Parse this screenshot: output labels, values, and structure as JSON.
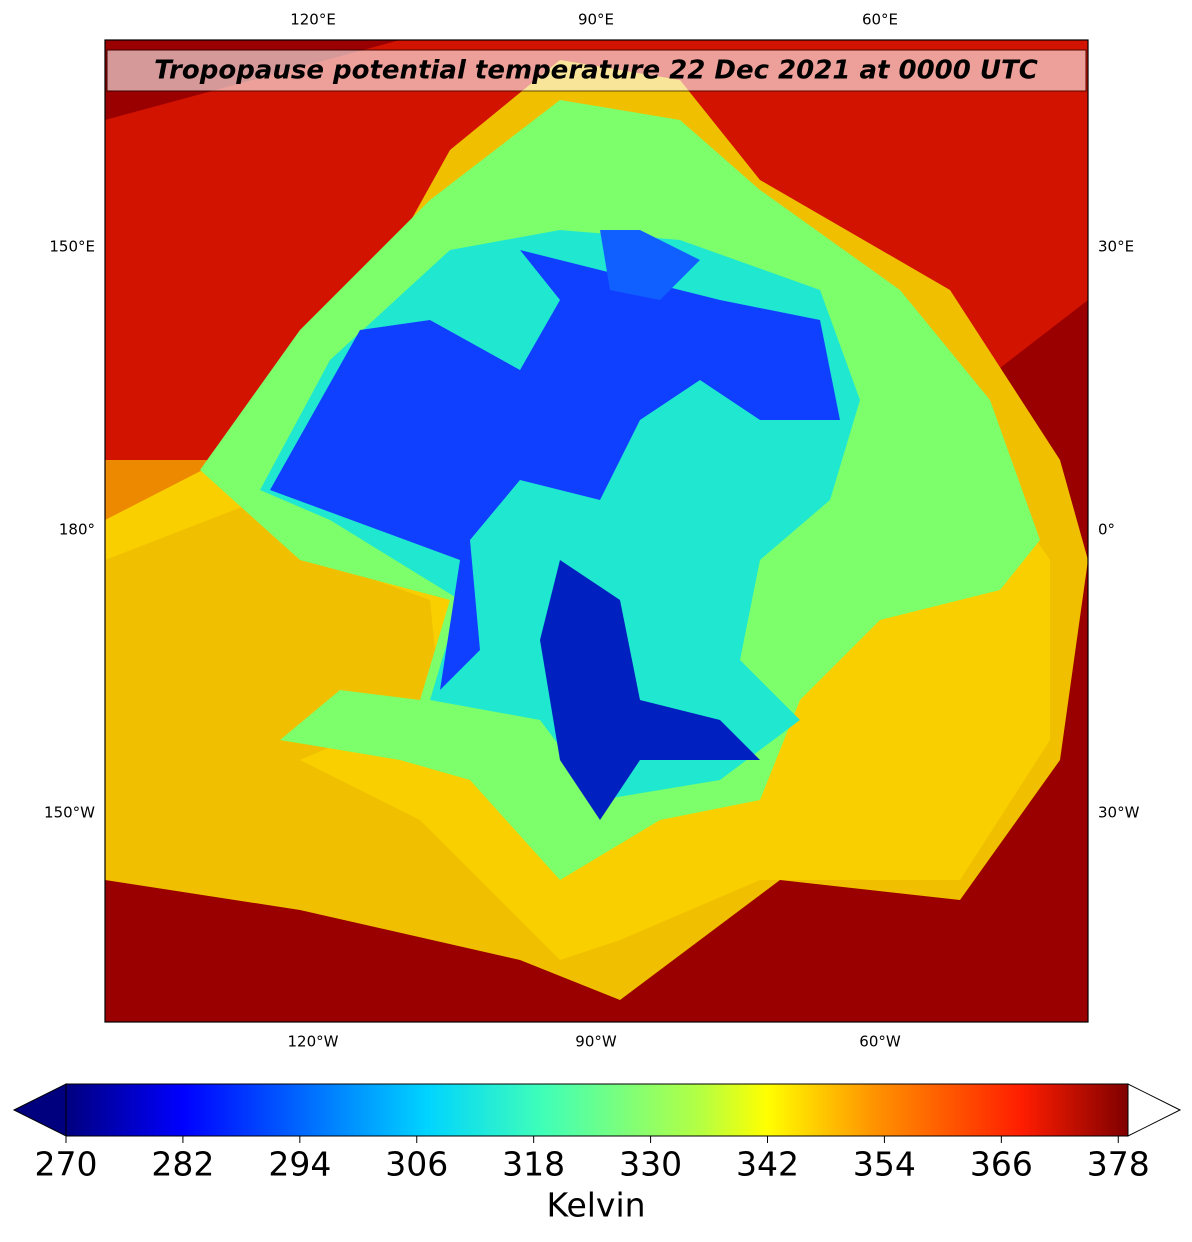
{
  "map": {
    "title": "Tropopause potential temperature 22 Dec 2021 at 0000 UTC",
    "top_labels": [
      "120°E",
      "90°E",
      "60°E"
    ],
    "bottom_labels": [
      "120°W",
      "90°W",
      "60°W"
    ],
    "left_labels": [
      "150°E",
      "180°",
      "150°W"
    ],
    "right_labels": [
      "30°E",
      "0°",
      "30°W"
    ]
  },
  "colorbar": {
    "label": "Kelvin",
    "lim": [
      270,
      379
    ],
    "ticks": [
      270,
      282,
      294,
      306,
      318,
      330,
      342,
      354,
      366,
      378
    ]
  }
}
